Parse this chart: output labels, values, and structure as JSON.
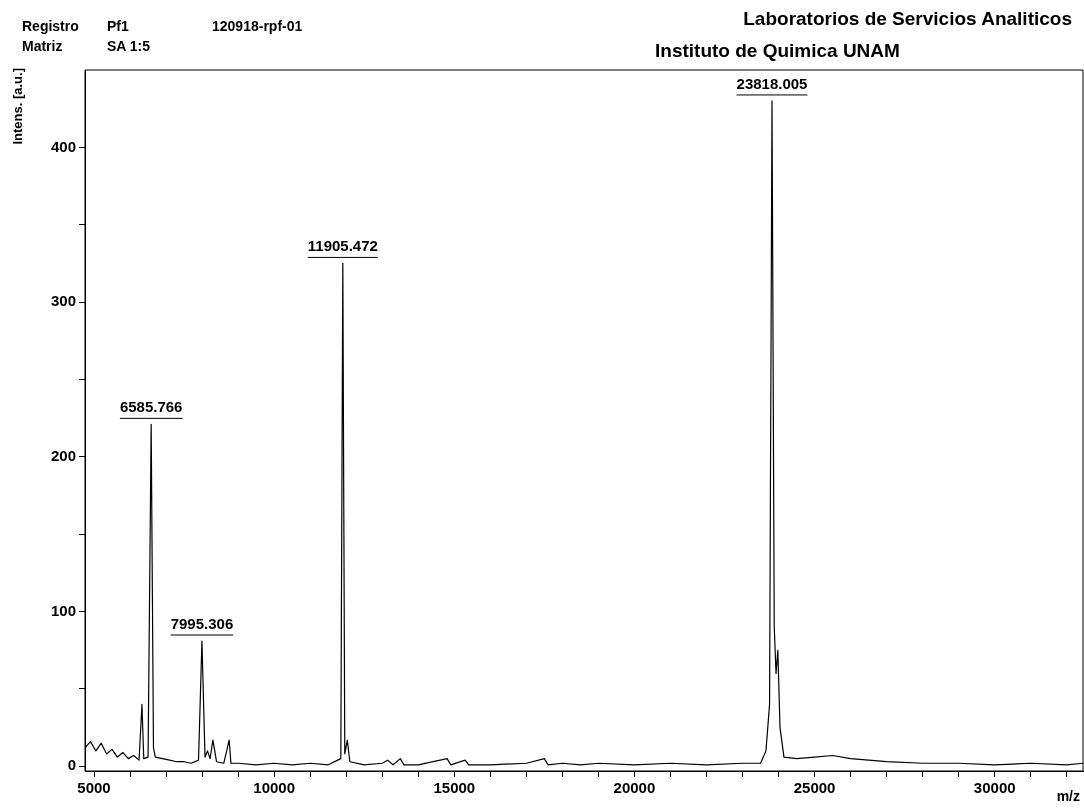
{
  "chart_data": {
    "type": "line",
    "title": "Laboratorios de Servicios Analiticos",
    "subtitle": "Instituto de Quimica UNAM",
    "xlabel": "m/z",
    "ylabel": "Intens. [a.u.]",
    "annotations": [
      "Registro",
      "Pf1",
      "120918-rpf-01",
      "Matriz",
      "SA 1:5",
      {
        "text": "6585.766",
        "x": 6586,
        "y": 221
      },
      {
        "text": "7995.306",
        "x": 7995,
        "y": 81
      },
      {
        "text": "11905.472",
        "x": 11905,
        "y": 325
      },
      {
        "text": "23818.005",
        "x": 23818,
        "y": 430
      }
    ],
    "xlim": [
      4750,
      32450
    ],
    "ylim": [
      -3,
      450
    ],
    "xticks": [
      5000,
      {
        "value": 6000,
        "label": null
      },
      {
        "value": 7000,
        "label": null
      },
      {
        "value": 8000,
        "label": null
      },
      {
        "value": 9000,
        "label": null
      },
      10000,
      {
        "value": 11000,
        "label": null
      },
      {
        "value": 12000,
        "label": null
      },
      {
        "value": 13000,
        "label": null
      },
      {
        "value": 14000,
        "label": null
      },
      15000,
      {
        "value": 16000,
        "label": null
      },
      {
        "value": 17000,
        "label": null
      },
      {
        "value": 18000,
        "label": null
      },
      {
        "value": 19000,
        "label": null
      },
      20000,
      {
        "value": 21000,
        "label": null
      },
      {
        "value": 22000,
        "label": null
      },
      {
        "value": 23000,
        "label": null
      },
      {
        "value": 24000,
        "label": null
      },
      25000,
      {
        "value": 26000,
        "label": null
      },
      {
        "value": 27000,
        "label": null
      },
      {
        "value": 28000,
        "label": null
      },
      {
        "value": 29000,
        "label": null
      },
      30000,
      {
        "value": 31000,
        "label": null
      },
      {
        "value": 32000,
        "label": null
      }
    ],
    "yticks": [
      0,
      {
        "value": 50,
        "label": null
      },
      100,
      {
        "value": 150,
        "label": null
      },
      200,
      {
        "value": 250,
        "label": null
      },
      300,
      {
        "value": 350,
        "label": null
      },
      400
    ],
    "series": [
      {
        "color": "#000000",
        "x": [
          4750,
          4900,
          5050,
          5200,
          5350,
          5500,
          5650,
          5800,
          5950,
          6100,
          6250,
          6330,
          6380,
          6500,
          6586,
          6650,
          6700,
          6900,
          7100,
          7300,
          7500,
          7700,
          7900,
          7995,
          8080,
          8150,
          8220,
          8300,
          8400,
          8600,
          8750,
          8800,
          9000,
          9500,
          10000,
          10500,
          11000,
          11500,
          11850,
          11905,
          11960,
          12030,
          12100,
          12500,
          13000,
          13150,
          13300,
          13500,
          13600,
          14000,
          14800,
          14900,
          15300,
          15400,
          16000,
          17000,
          17500,
          17600,
          18000,
          18500,
          19000,
          20000,
          21000,
          22000,
          23000,
          23500,
          23650,
          23750,
          23818,
          23880,
          23930,
          23980,
          24040,
          24150,
          24500,
          25000,
          25500,
          26000,
          26500,
          27000,
          28000,
          29000,
          30000,
          31000,
          32000,
          32450
        ],
        "values": [
          12,
          16,
          10,
          15,
          8,
          11,
          6,
          9,
          5,
          7,
          4,
          40,
          5,
          6,
          221,
          12,
          6,
          5,
          4,
          3,
          3,
          2,
          4,
          81,
          6,
          10,
          5,
          17,
          3,
          2,
          17,
          2,
          2,
          1,
          2,
          1,
          2,
          1,
          5,
          325,
          8,
          17,
          3,
          1,
          2,
          4,
          1,
          5,
          1,
          1,
          5,
          1,
          4,
          1,
          1,
          2,
          5,
          1,
          2,
          1,
          2,
          1,
          2,
          1,
          2,
          2,
          10,
          40,
          430,
          90,
          60,
          75,
          25,
          6,
          5,
          6,
          7,
          5,
          4,
          3,
          2,
          2,
          1,
          2,
          1,
          2
        ]
      }
    ]
  }
}
